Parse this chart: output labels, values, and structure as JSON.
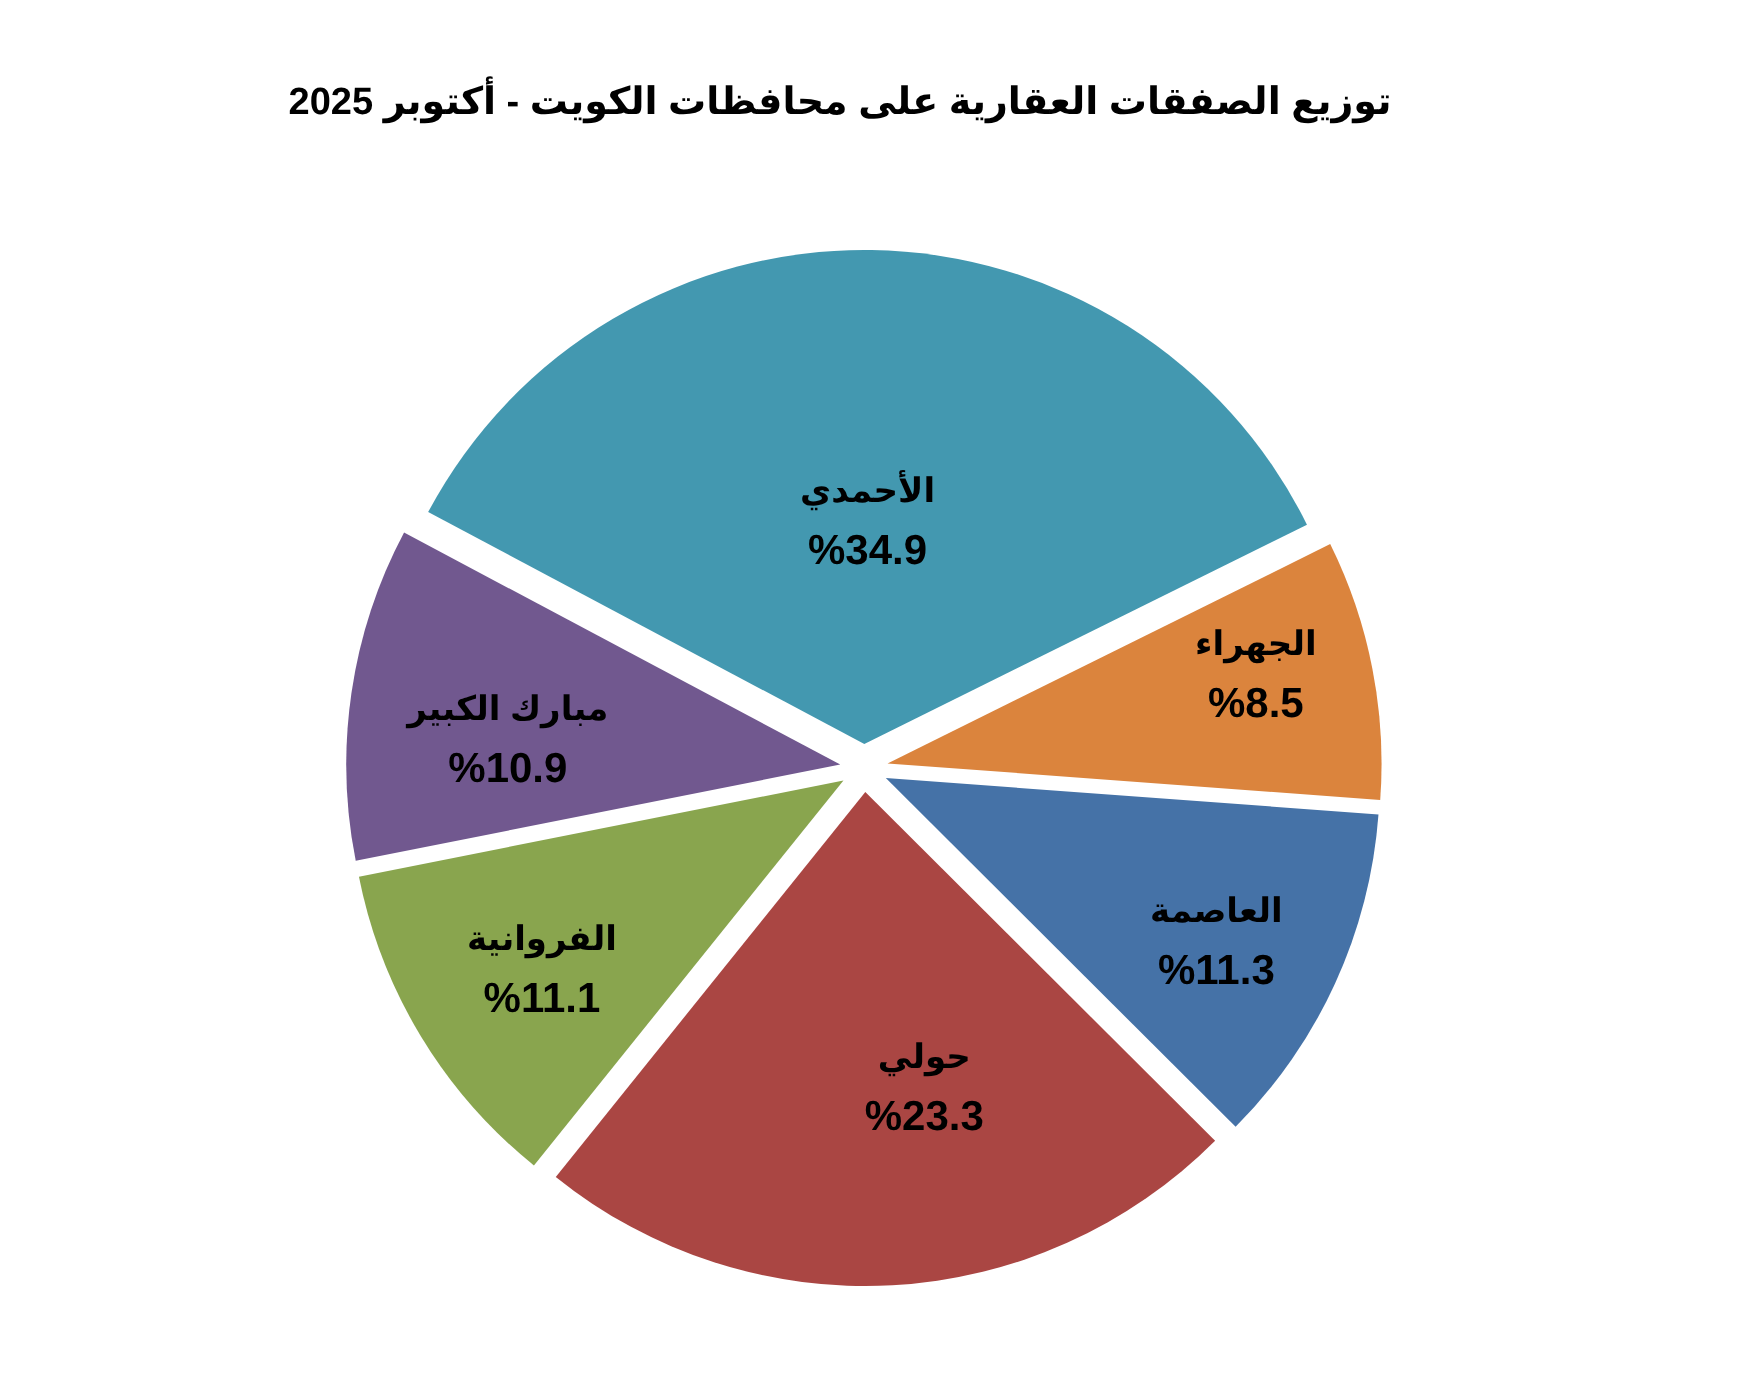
{
  "chart_data": {
    "type": "pie",
    "title": "توزيع الصفقات العقارية على محافظات الكويت - أكتوبر 2025",
    "categories": [
      "الأحمدي",
      "الجهراء",
      "العاصمة",
      "حولي",
      "الفروانية",
      "مبارك الكبير"
    ],
    "values": [
      34.9,
      8.5,
      11.3,
      23.3,
      11.1,
      10.9
    ],
    "colors": [
      "#4398b0",
      "#db843d",
      "#4572a7",
      "#aa4643",
      "#89a54e",
      "#71588f"
    ],
    "value_labels": [
      "%34.9",
      "%8.5",
      "%11.3",
      "%23.3",
      "%11.1",
      "%10.9"
    ]
  }
}
